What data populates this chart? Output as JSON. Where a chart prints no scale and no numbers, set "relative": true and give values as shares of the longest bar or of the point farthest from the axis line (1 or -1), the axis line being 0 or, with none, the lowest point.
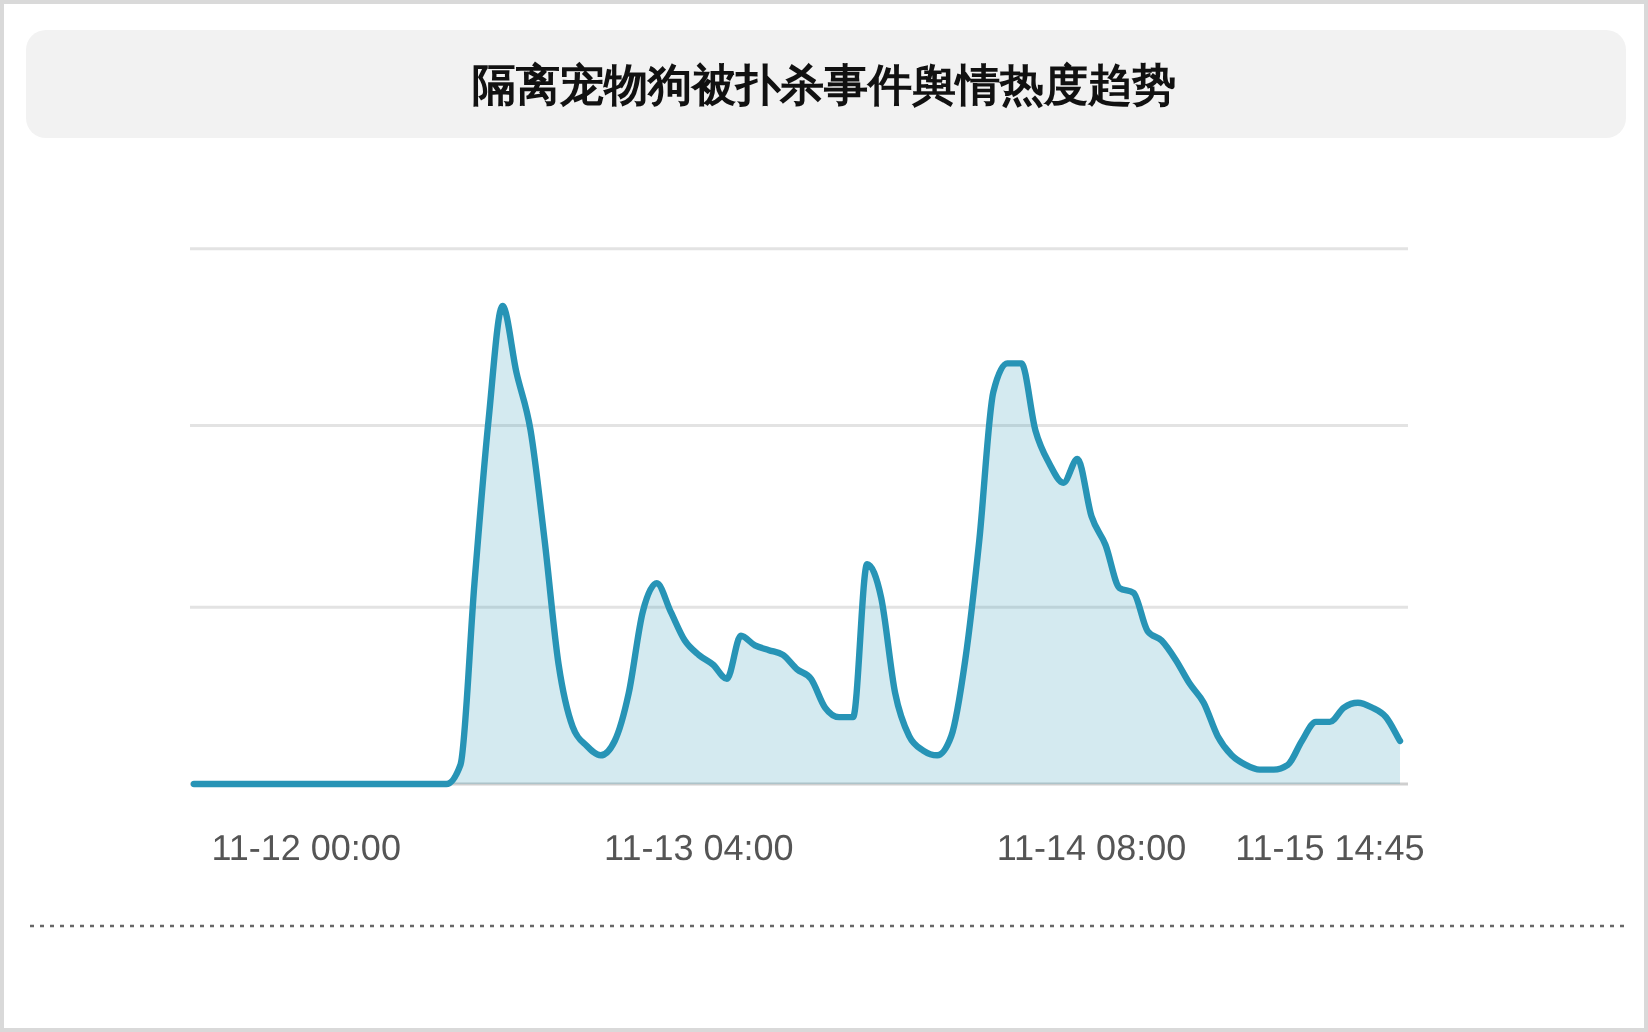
{
  "chart_data": {
    "type": "area",
    "title": "隔离宠物狗被扑杀事件舆情热度趋势",
    "relative": true,
    "ref_lines": [
      {
        "axis": "y",
        "value": 0.37,
        "color": "#e3e3e3"
      },
      {
        "axis": "y",
        "value": 0.75,
        "color": "#e3e3e3"
      },
      {
        "axis": "y",
        "value": 1.12,
        "color": "#e3e3e3"
      }
    ],
    "categories": [
      null,
      null,
      null,
      null,
      null,
      null,
      null,
      null,
      "11-12 00:00",
      null,
      null,
      null,
      null,
      null,
      null,
      null,
      null,
      null,
      null,
      null,
      null,
      null,
      null,
      null,
      null,
      null,
      null,
      null,
      null,
      null,
      null,
      null,
      null,
      null,
      null,
      null,
      "11-13 04:00",
      null,
      null,
      null,
      null,
      null,
      null,
      null,
      null,
      null,
      null,
      null,
      null,
      null,
      null,
      null,
      null,
      null,
      null,
      null,
      null,
      null,
      null,
      null,
      null,
      null,
      null,
      null,
      "11-14 08:00",
      null,
      null,
      null,
      null,
      null,
      null,
      null,
      null,
      null,
      null,
      null,
      null,
      null,
      null,
      null,
      null,
      "11-15 14:45",
      null,
      null,
      null,
      null,
      null
    ],
    "series": [
      {
        "color": "#2794b6",
        "values": [
          0,
          0,
          0,
          0,
          0,
          0,
          0,
          0,
          0,
          0,
          0,
          0,
          0,
          0,
          0,
          0,
          0,
          0,
          0,
          0.04,
          0.42,
          0.76,
          1,
          0.86,
          0.74,
          0.51,
          0.25,
          0.12,
          0.08,
          0.06,
          0.09,
          0.19,
          0.36,
          0.42,
          0.36,
          0.3,
          0.27,
          0.25,
          0.22,
          0.31,
          0.29,
          0.28,
          0.27,
          0.24,
          0.22,
          0.16,
          0.14,
          0.14,
          0.46,
          0.39,
          0.19,
          0.1,
          0.07,
          0.06,
          0.1,
          0.26,
          0.51,
          0.82,
          0.88,
          0.88,
          0.74,
          0.67,
          0.63,
          0.68,
          0.56,
          0.5,
          0.41,
          0.4,
          0.32,
          0.3,
          0.26,
          0.21,
          0.17,
          0.1,
          0.06,
          0.04,
          0.03,
          0.03,
          0.04,
          0.09,
          0.13,
          0.13,
          0.16,
          0.17,
          0.16,
          0.14,
          0.09
        ]
      }
    ]
  }
}
